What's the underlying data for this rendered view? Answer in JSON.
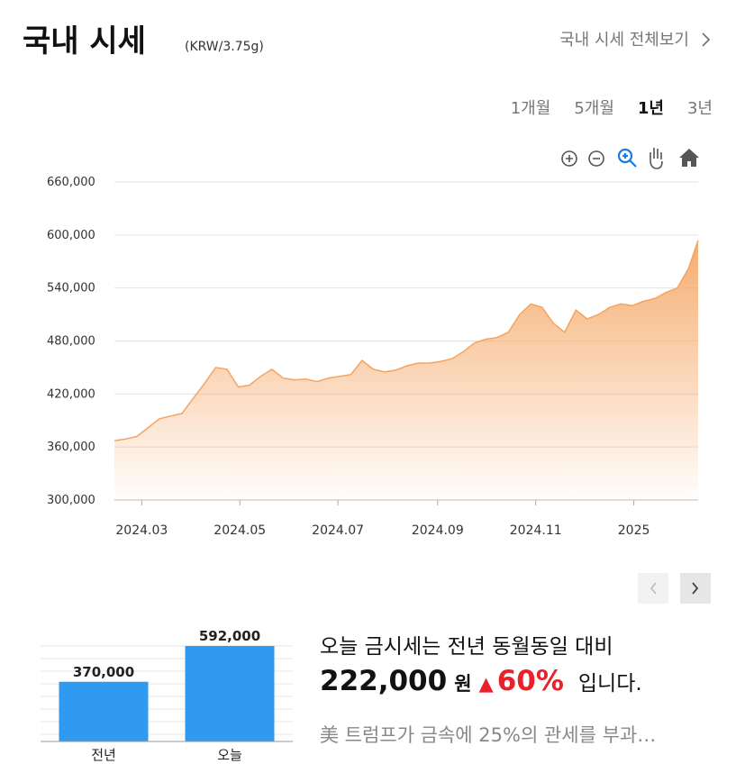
{
  "header": {
    "title": "국내 시세",
    "unit": "(KRW/3.75g)",
    "link": "국내 시세 전체보기"
  },
  "tabs": [
    "1개월",
    "5개월",
    "1년",
    "3년"
  ],
  "chart_data": [
    {
      "type": "area",
      "color": "#f5a460",
      "x": [
        "2024-02-13",
        "2024-02-20",
        "2024-02-27",
        "2024-03-05",
        "2024-03-12",
        "2024-03-19",
        "2024-03-26",
        "2024-04-02",
        "2024-04-09",
        "2024-04-16",
        "2024-04-23",
        "2024-04-30",
        "2024-05-07",
        "2024-05-14",
        "2024-05-21",
        "2024-05-28",
        "2024-06-04",
        "2024-06-11",
        "2024-06-18",
        "2024-06-25",
        "2024-07-02",
        "2024-07-09",
        "2024-07-16",
        "2024-07-23",
        "2024-07-30",
        "2024-08-06",
        "2024-08-13",
        "2024-08-20",
        "2024-08-27",
        "2024-09-03",
        "2024-09-10",
        "2024-09-17",
        "2024-09-24",
        "2024-10-01",
        "2024-10-08",
        "2024-10-15",
        "2024-10-22",
        "2024-10-29",
        "2024-11-05",
        "2024-11-12",
        "2024-11-19",
        "2024-11-26",
        "2024-12-03",
        "2024-12-10",
        "2024-12-17",
        "2024-12-24",
        "2024-12-31",
        "2025-01-07",
        "2025-01-14",
        "2025-01-21",
        "2025-01-28",
        "2025-02-04",
        "2025-02-10"
      ],
      "values": [
        367000,
        369000,
        372000,
        382000,
        392000,
        395000,
        398000,
        415000,
        432000,
        450000,
        448000,
        428000,
        430000,
        440000,
        448000,
        438000,
        436000,
        437000,
        434000,
        438000,
        440000,
        442000,
        458000,
        448000,
        445000,
        447000,
        452000,
        455000,
        455000,
        457000,
        460000,
        468000,
        478000,
        482000,
        484000,
        490000,
        510000,
        522000,
        518000,
        500000,
        490000,
        515000,
        505000,
        510000,
        518000,
        522000,
        520000,
        525000,
        528000,
        535000,
        540000,
        562000,
        594000
      ],
      "xlim": [
        "2024-02-13",
        "2025-02-10"
      ],
      "xticks": [
        {
          "value": "2024-03-01",
          "label": "2024.03"
        },
        {
          "value": "2024-05-01",
          "label": "2024.05"
        },
        {
          "value": "2024-07-01",
          "label": "2024.07"
        },
        {
          "value": "2024-09-01",
          "label": "2024.09"
        },
        {
          "value": "2024-11-01",
          "label": "2024.11"
        },
        {
          "value": "2025-01-01",
          "label": "2025"
        }
      ],
      "ylim": [
        300000,
        660000
      ],
      "yticks": [
        {
          "value": 300000,
          "label": "300,000"
        },
        {
          "value": 360000,
          "label": "360,000"
        },
        {
          "value": 420000,
          "label": "420,000"
        },
        {
          "value": 480000,
          "label": "480,000"
        },
        {
          "value": 540000,
          "label": "540,000"
        },
        {
          "value": 600000,
          "label": "600,000"
        },
        {
          "value": 660000,
          "label": "660,000"
        }
      ],
      "grid": true
    },
    {
      "type": "bar",
      "color": "#2f9af0",
      "categories": [
        "전년",
        "오늘"
      ],
      "values": [
        370000,
        592000
      ],
      "value_labels": [
        "370,000",
        "592,000"
      ]
    }
  ],
  "summary": {
    "lead": "오늘 금시세는 전년 동월동일 대비",
    "diff": "222,000",
    "unit": "원",
    "arrow": "▲",
    "rate": "60%",
    "tail": "입니다."
  },
  "news": "美 트럼프가 금속에 25%의 관세를 부과…"
}
